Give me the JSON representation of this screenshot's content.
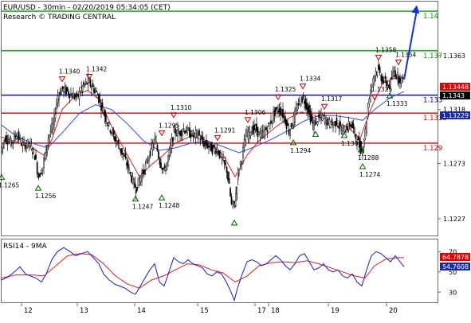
{
  "header": {
    "title": "EUR/USD - 30min - 02/20/2019 05:34:05 (CET)",
    "subtitle": "Research © TRADING CENTRAL"
  },
  "colors": {
    "support": "#00a000",
    "resistance_red": "#e00000",
    "pivot_blue": "#0000b0",
    "price": "#000000",
    "ma_red": "#e02020",
    "ma_blue": "#3050e0",
    "arrow": "#1030e0",
    "rsi_blue": "#1a1ad0",
    "rsi_ma_red": "#e02020",
    "price_badge_red": "#e00000",
    "price_badge_black": "#000000",
    "blue_badge": "#1a2aa0",
    "rsi_badge_blue": "#1a2aa0",
    "pin_up": "#006000",
    "pin_down": "#d00000",
    "frame": "#6a6a6a"
  },
  "chart_data": [
    {
      "type": "candlestick-line",
      "title": "EUR/USD - 30min - 02/20/2019 05:34:05 (CET)",
      "ylim": [
        1.1213,
        1.1408
      ],
      "x_ticks": [
        "12",
        "13",
        "14",
        "15",
        "17",
        "18",
        "19",
        "20"
      ],
      "y_ticks": [
        1.1363,
        1.1318,
        1.1273,
        1.1227
      ],
      "levels": [
        {
          "label": "1.14",
          "value": 1.14,
          "color": "green"
        },
        {
          "label": "1.137",
          "value": 1.1367,
          "color": "green"
        },
        {
          "label": "1.133",
          "value": 1.133,
          "color": "blue"
        },
        {
          "label": "1.1315",
          "value": 1.1315,
          "color": "red"
        },
        {
          "label": "1.129",
          "value": 1.129,
          "color": "red"
        }
      ],
      "badges": [
        {
          "label": "1.13448",
          "value": 1.13448,
          "color": "red"
        },
        {
          "label": "1.1343",
          "value": 1.1343,
          "color": "black"
        },
        {
          "label": "1.13229",
          "value": 1.13229,
          "color": "blue"
        }
      ],
      "pivots": [
        {
          "label": "1.1265",
          "value": 1.1265,
          "dir": "low",
          "xi": 2
        },
        {
          "label": "1.1256",
          "value": 1.1256,
          "dir": "low",
          "xi": 48
        },
        {
          "label": "1.1340",
          "value": 1.134,
          "dir": "high",
          "xi": 78
        },
        {
          "label": "1.1342",
          "value": 1.1342,
          "dir": "high",
          "xi": 112
        },
        {
          "label": "1.1247",
          "value": 1.1247,
          "dir": "low",
          "xi": 170
        },
        {
          "label": "1.1248",
          "value": 1.1248,
          "dir": "low",
          "xi": 203
        },
        {
          "label": "1.1295",
          "value": 1.1295,
          "dir": "high",
          "xi": 203
        },
        {
          "label": "1.1310",
          "value": 1.131,
          "dir": "high",
          "xi": 218
        },
        {
          "label": "1.1291",
          "value": 1.1291,
          "dir": "high",
          "xi": 273
        },
        {
          "label": "",
          "value": 1.1227,
          "dir": "low",
          "xi": 294
        },
        {
          "label": "1.1306",
          "value": 1.1306,
          "dir": "high",
          "xi": 311
        },
        {
          "label": "1.1325",
          "value": 1.1325,
          "dir": "high",
          "xi": 349
        },
        {
          "label": "1.1294",
          "value": 1.1294,
          "dir": "low",
          "xi": 368
        },
        {
          "label": "1.1334",
          "value": 1.1334,
          "dir": "high",
          "xi": 380
        },
        {
          "label": "",
          "value": 1.1301,
          "dir": "low",
          "xi": 396
        },
        {
          "label": "1.1317",
          "value": 1.1317,
          "dir": "high",
          "xi": 407
        },
        {
          "label": "1.1300",
          "value": 1.13,
          "dir": "low",
          "xi": 432
        },
        {
          "label": "1.1288",
          "value": 1.1288,
          "dir": "low",
          "xi": 453
        },
        {
          "label": "1.1274",
          "value": 1.1274,
          "dir": "low",
          "xi": 455
        },
        {
          "label": "1.1325",
          "value": 1.1325,
          "dir": "high",
          "xi": 470
        },
        {
          "label": "1.1358",
          "value": 1.1358,
          "dir": "high",
          "xi": 475
        },
        {
          "label": "1.1333",
          "value": 1.1333,
          "dir": "low",
          "xi": 489
        },
        {
          "label": "1.1354",
          "value": 1.1354,
          "dir": "high",
          "xi": 500
        }
      ],
      "price_path": [
        [
          2,
          1.1283
        ],
        [
          8,
          1.1295
        ],
        [
          15,
          1.129
        ],
        [
          22,
          1.1298
        ],
        [
          30,
          1.1288
        ],
        [
          38,
          1.129
        ],
        [
          45,
          1.128
        ],
        [
          50,
          1.1262
        ],
        [
          55,
          1.127
        ],
        [
          62,
          1.1295
        ],
        [
          68,
          1.1305
        ],
        [
          74,
          1.133
        ],
        [
          80,
          1.1335
        ],
        [
          86,
          1.1333
        ],
        [
          92,
          1.133
        ],
        [
          98,
          1.1328
        ],
        [
          105,
          1.1337
        ],
        [
          112,
          1.1341
        ],
        [
          118,
          1.1336
        ],
        [
          124,
          1.133
        ],
        [
          130,
          1.1318
        ],
        [
          137,
          1.1306
        ],
        [
          144,
          1.1296
        ],
        [
          150,
          1.1288
        ],
        [
          156,
          1.128
        ],
        [
          162,
          1.127
        ],
        [
          168,
          1.1258
        ],
        [
          172,
          1.1252
        ],
        [
          178,
          1.1262
        ],
        [
          184,
          1.127
        ],
        [
          190,
          1.1283
        ],
        [
          196,
          1.1293
        ],
        [
          202,
          1.1275
        ],
        [
          208,
          1.1266
        ],
        [
          214,
          1.1282
        ],
        [
          220,
          1.13
        ],
        [
          226,
          1.1298
        ],
        [
          232,
          1.1302
        ],
        [
          238,
          1.1299
        ],
        [
          244,
          1.1296
        ],
        [
          250,
          1.1298
        ],
        [
          256,
          1.129
        ],
        [
          262,
          1.1288
        ],
        [
          268,
          1.1285
        ],
        [
          274,
          1.1285
        ],
        [
          280,
          1.1276
        ],
        [
          286,
          1.1268
        ],
        [
          292,
          1.1238
        ],
        [
          296,
          1.124
        ],
        [
          300,
          1.1265
        ],
        [
          305,
          1.1278
        ],
        [
          310,
          1.1296
        ],
        [
          316,
          1.1301
        ],
        [
          322,
          1.1302
        ],
        [
          328,
          1.1296
        ],
        [
          334,
          1.13
        ],
        [
          340,
          1.1306
        ],
        [
          346,
          1.1316
        ],
        [
          352,
          1.1318
        ],
        [
          358,
          1.1312
        ],
        [
          364,
          1.13
        ],
        [
          370,
          1.131
        ],
        [
          376,
          1.1323
        ],
        [
          382,
          1.1328
        ],
        [
          388,
          1.1318
        ],
        [
          394,
          1.1305
        ],
        [
          400,
          1.131
        ],
        [
          406,
          1.1312
        ],
        [
          412,
          1.1308
        ],
        [
          418,
          1.1305
        ],
        [
          424,
          1.1308
        ],
        [
          430,
          1.13
        ],
        [
          436,
          1.1303
        ],
        [
          442,
          1.1306
        ],
        [
          448,
          1.1295
        ],
        [
          455,
          1.1283
        ],
        [
          460,
          1.13
        ],
        [
          465,
          1.133
        ],
        [
          470,
          1.1345
        ],
        [
          475,
          1.1352
        ],
        [
          480,
          1.1345
        ],
        [
          485,
          1.134
        ],
        [
          490,
          1.1338
        ],
        [
          496,
          1.135
        ],
        [
          502,
          1.1344
        ],
        [
          507,
          1.1343
        ]
      ],
      "ma_red": [
        [
          2,
          1.1295
        ],
        [
          20,
          1.1291
        ],
        [
          40,
          1.1286
        ],
        [
          55,
          1.128
        ],
        [
          65,
          1.1293
        ],
        [
          78,
          1.1318
        ],
        [
          95,
          1.133
        ],
        [
          110,
          1.1334
        ],
        [
          125,
          1.1326
        ],
        [
          140,
          1.1304
        ],
        [
          160,
          1.128
        ],
        [
          175,
          1.1262
        ],
        [
          190,
          1.1272
        ],
        [
          205,
          1.128
        ],
        [
          220,
          1.129
        ],
        [
          240,
          1.1296
        ],
        [
          260,
          1.1292
        ],
        [
          280,
          1.128
        ],
        [
          295,
          1.1262
        ],
        [
          310,
          1.128
        ],
        [
          325,
          1.1292
        ],
        [
          345,
          1.1303
        ],
        [
          360,
          1.131
        ],
        [
          378,
          1.1316
        ],
        [
          395,
          1.1313
        ],
        [
          415,
          1.1308
        ],
        [
          435,
          1.1304
        ],
        [
          452,
          1.1294
        ],
        [
          465,
          1.1318
        ],
        [
          480,
          1.134
        ],
        [
          495,
          1.1344
        ],
        [
          507,
          1.1344
        ]
      ],
      "ma_blue": [
        [
          2,
          1.1305
        ],
        [
          20,
          1.1296
        ],
        [
          40,
          1.129
        ],
        [
          60,
          1.1286
        ],
        [
          80,
          1.13
        ],
        [
          100,
          1.1315
        ],
        [
          120,
          1.1322
        ],
        [
          140,
          1.1318
        ],
        [
          160,
          1.1306
        ],
        [
          180,
          1.1292
        ],
        [
          200,
          1.1284
        ],
        [
          220,
          1.1286
        ],
        [
          240,
          1.129
        ],
        [
          260,
          1.1292
        ],
        [
          280,
          1.1287
        ],
        [
          300,
          1.1282
        ],
        [
          320,
          1.1287
        ],
        [
          340,
          1.1293
        ],
        [
          360,
          1.13
        ],
        [
          380,
          1.1308
        ],
        [
          400,
          1.1313
        ],
        [
          420,
          1.1313
        ],
        [
          440,
          1.1311
        ],
        [
          455,
          1.1309
        ],
        [
          470,
          1.1318
        ],
        [
          490,
          1.1328
        ],
        [
          507,
          1.1333
        ]
      ],
      "arrow": {
        "from": [
          507,
          1.1343
        ],
        "to": [
          523,
          1.1405
        ]
      }
    },
    {
      "type": "line",
      "title": "RSI14 - 9MA",
      "ylim": [
        20,
        82
      ],
      "y_ticks": [
        70,
        50,
        30
      ],
      "badges": [
        {
          "label": "64.7878",
          "value": 64.7878,
          "color": "red"
        },
        {
          "label": "54.7608",
          "value": 54.7608,
          "color": "blue"
        }
      ],
      "rsi": [
        [
          2,
          42
        ],
        [
          10,
          45
        ],
        [
          18,
          50
        ],
        [
          25,
          55
        ],
        [
          32,
          48
        ],
        [
          38,
          46
        ],
        [
          45,
          44
        ],
        [
          52,
          40
        ],
        [
          58,
          48
        ],
        [
          65,
          62
        ],
        [
          72,
          70
        ],
        [
          80,
          74
        ],
        [
          88,
          70
        ],
        [
          95,
          66
        ],
        [
          102,
          68
        ],
        [
          110,
          70
        ],
        [
          117,
          64
        ],
        [
          124,
          58
        ],
        [
          130,
          48
        ],
        [
          137,
          42
        ],
        [
          144,
          38
        ],
        [
          150,
          36
        ],
        [
          157,
          34
        ],
        [
          164,
          30
        ],
        [
          170,
          28
        ],
        [
          176,
          36
        ],
        [
          182,
          44
        ],
        [
          188,
          52
        ],
        [
          194,
          58
        ],
        [
          200,
          40
        ],
        [
          206,
          36
        ],
        [
          212,
          50
        ],
        [
          218,
          64
        ],
        [
          224,
          60
        ],
        [
          230,
          58
        ],
        [
          236,
          62
        ],
        [
          242,
          58
        ],
        [
          248,
          56
        ],
        [
          254,
          54
        ],
        [
          260,
          48
        ],
        [
          266,
          46
        ],
        [
          272,
          50
        ],
        [
          278,
          48
        ],
        [
          284,
          40
        ],
        [
          290,
          30
        ],
        [
          294,
          22
        ],
        [
          298,
          34
        ],
        [
          304,
          48
        ],
        [
          310,
          60
        ],
        [
          316,
          62
        ],
        [
          322,
          60
        ],
        [
          328,
          56
        ],
        [
          334,
          58
        ],
        [
          340,
          62
        ],
        [
          346,
          66
        ],
        [
          352,
          62
        ],
        [
          358,
          56
        ],
        [
          364,
          52
        ],
        [
          370,
          58
        ],
        [
          376,
          66
        ],
        [
          382,
          68
        ],
        [
          388,
          60
        ],
        [
          394,
          52
        ],
        [
          400,
          54
        ],
        [
          406,
          58
        ],
        [
          412,
          52
        ],
        [
          418,
          50
        ],
        [
          424,
          52
        ],
        [
          430,
          46
        ],
        [
          436,
          44
        ],
        [
          442,
          48
        ],
        [
          448,
          40
        ],
        [
          454,
          36
        ],
        [
          460,
          52
        ],
        [
          466,
          66
        ],
        [
          472,
          70
        ],
        [
          478,
          68
        ],
        [
          484,
          64
        ],
        [
          490,
          60
        ],
        [
          496,
          66
        ],
        [
          502,
          60
        ],
        [
          507,
          55
        ]
      ],
      "ma": [
        [
          2,
          44
        ],
        [
          20,
          47
        ],
        [
          40,
          47
        ],
        [
          55,
          46
        ],
        [
          70,
          56
        ],
        [
          85,
          66
        ],
        [
          100,
          68
        ],
        [
          115,
          67
        ],
        [
          130,
          58
        ],
        [
          145,
          46
        ],
        [
          160,
          38
        ],
        [
          175,
          34
        ],
        [
          190,
          42
        ],
        [
          205,
          46
        ],
        [
          220,
          52
        ],
        [
          235,
          58
        ],
        [
          250,
          57
        ],
        [
          265,
          52
        ],
        [
          280,
          49
        ],
        [
          295,
          40
        ],
        [
          310,
          46
        ],
        [
          325,
          56
        ],
        [
          340,
          59
        ],
        [
          355,
          60
        ],
        [
          370,
          59
        ],
        [
          385,
          61
        ],
        [
          400,
          58
        ],
        [
          415,
          54
        ],
        [
          430,
          50
        ],
        [
          445,
          46
        ],
        [
          458,
          44
        ],
        [
          470,
          56
        ],
        [
          485,
          63
        ],
        [
          500,
          64
        ],
        [
          507,
          64
        ]
      ]
    }
  ]
}
